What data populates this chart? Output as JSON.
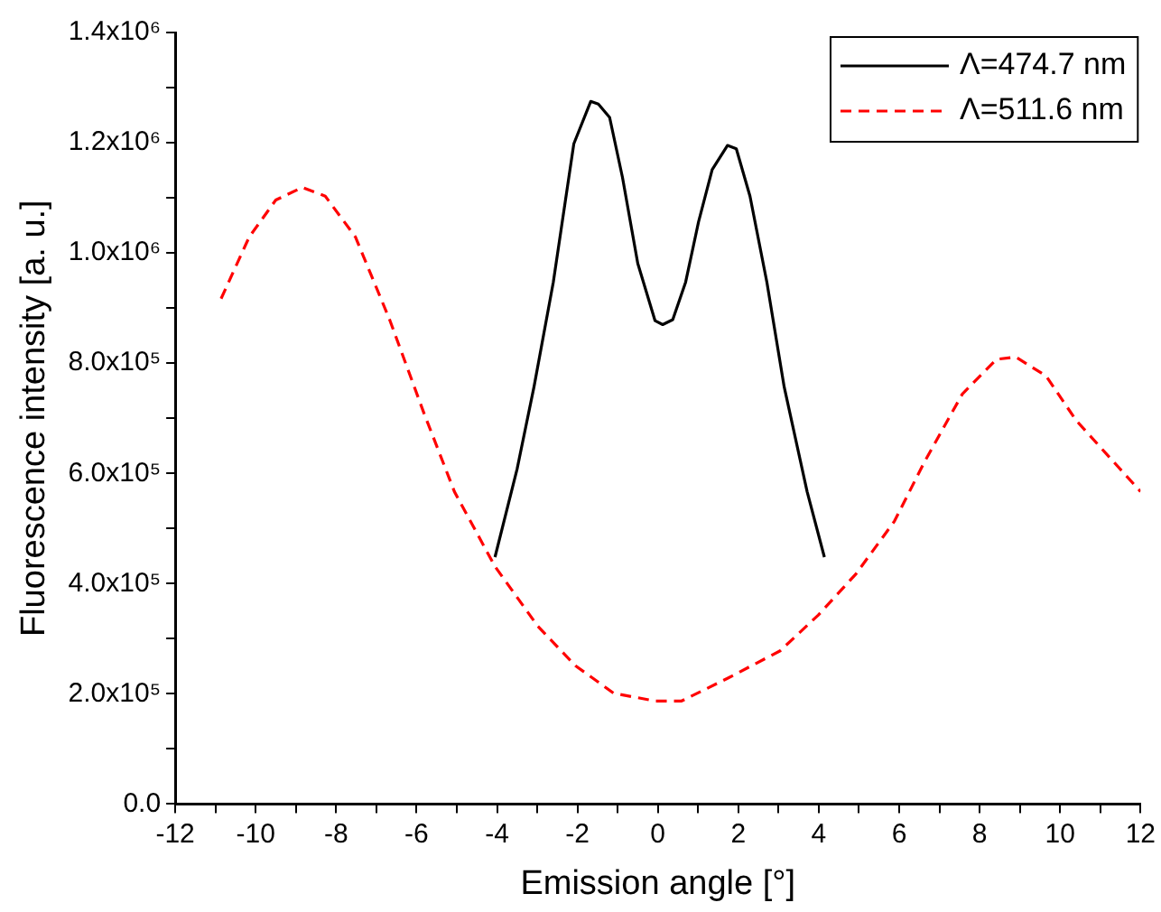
{
  "chart_data": {
    "type": "line",
    "xlabel": "Emission angle [°]",
    "ylabel": "Fluorescence intensity [a. u.]",
    "xlim": [
      -12,
      12
    ],
    "ylim": [
      0,
      1400000
    ],
    "xticks": [
      -12,
      {
        "value": -11,
        "label": null
      },
      -10,
      {
        "value": -9,
        "label": null
      },
      -8,
      {
        "value": -7,
        "label": null
      },
      -6,
      {
        "value": -5,
        "label": null
      },
      -4,
      {
        "value": -3,
        "label": null
      },
      -2,
      {
        "value": -1,
        "label": null
      },
      0,
      {
        "value": 1,
        "label": null
      },
      2,
      {
        "value": 3,
        "label": null
      },
      4,
      {
        "value": 5,
        "label": null
      },
      6,
      {
        "value": 7,
        "label": null
      },
      8,
      {
        "value": 9,
        "label": null
      },
      10,
      {
        "value": 11,
        "label": null
      },
      12
    ],
    "yticks": [
      {
        "value": 0,
        "label": "0.0"
      },
      {
        "value": 100000,
        "label": null
      },
      {
        "value": 200000,
        "label": "2.0x10⁵"
      },
      {
        "value": 300000,
        "label": null
      },
      {
        "value": 400000,
        "label": "4.0x10⁵"
      },
      {
        "value": 500000,
        "label": null
      },
      {
        "value": 600000,
        "label": "6.0x10⁵"
      },
      {
        "value": 700000,
        "label": null
      },
      {
        "value": 800000,
        "label": "8.0x10⁵"
      },
      {
        "value": 900000,
        "label": null
      },
      {
        "value": 1000000,
        "label": "1.0x10⁶"
      },
      {
        "value": 1100000,
        "label": null
      },
      {
        "value": 1200000,
        "label": "1.2x10⁶"
      },
      {
        "value": 1300000,
        "label": null
      },
      {
        "value": 1400000,
        "label": "1.4x10⁶"
      }
    ],
    "grid": false,
    "legend": "top right",
    "marker": "none",
    "series": [
      {
        "name": "Λ=474.7 nm",
        "color": "#000000",
        "line_style": "solid",
        "x": [
          -4.05,
          -3.5,
          -3.08,
          -2.6,
          -2.09,
          -1.67,
          -1.48,
          -1.2,
          -0.88,
          -0.5,
          -0.07,
          0.12,
          0.37,
          0.69,
          1.01,
          1.35,
          1.73,
          1.95,
          2.29,
          2.71,
          3.14,
          3.71,
          4.14
        ],
        "values": [
          448000,
          608000,
          757000,
          947000,
          1198000,
          1275000,
          1270000,
          1246000,
          1137000,
          981000,
          877000,
          870000,
          879000,
          947000,
          1056000,
          1151000,
          1195000,
          1189000,
          1103000,
          947000,
          757000,
          567000,
          448000
        ]
      },
      {
        "name": "Λ=511.6 nm",
        "color": "#ff0000",
        "line_style": "dashed",
        "x": [
          -10.86,
          -10.16,
          -9.5,
          -8.84,
          -8.27,
          -7.52,
          -6.67,
          -5.82,
          -5.06,
          -4.05,
          -2.99,
          -2.05,
          -1.1,
          -0.07,
          0.59,
          1.73,
          3.04,
          3.99,
          4.93,
          5.88,
          6.63,
          7.57,
          8.42,
          8.9,
          9.65,
          10.4,
          12
        ],
        "values": [
          917000,
          1029000,
          1096000,
          1119000,
          1103000,
          1029000,
          879000,
          710000,
          567000,
          431000,
          323000,
          251000,
          201000,
          187000,
          187000,
          228000,
          278000,
          343000,
          418000,
          513000,
          621000,
          744000,
          807000,
          811000,
          777000,
          696000,
          567000
        ]
      }
    ]
  }
}
